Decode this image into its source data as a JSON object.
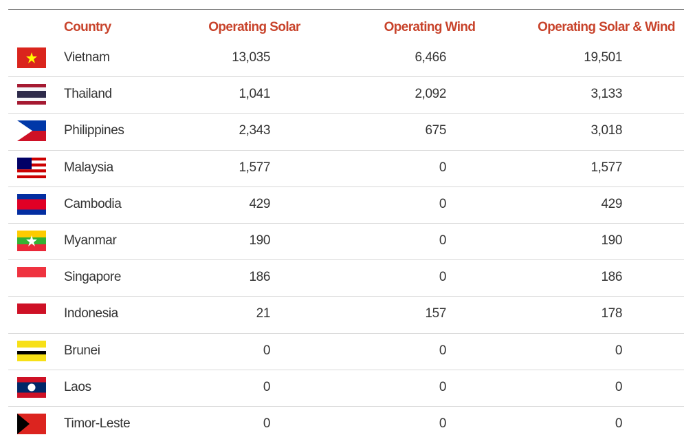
{
  "table": {
    "header": [
      "Country",
      "Operating Solar",
      "Operating Wind",
      "Operating Solar & Wind"
    ],
    "rows": [
      [
        "Vietnam",
        "13,035",
        "6,466",
        "19,501"
      ],
      [
        "Thailand",
        "1,041",
        "2,092",
        "3,133"
      ],
      [
        "Philippines",
        "2,343",
        "675",
        "3,018"
      ],
      [
        "Malaysia",
        "1,577",
        "0",
        "1,577"
      ],
      [
        "Cambodia",
        "429",
        "0",
        "429"
      ],
      [
        "Myanmar",
        "190",
        "0",
        "190"
      ],
      [
        "Singapore",
        "186",
        "0",
        "186"
      ],
      [
        "Indonesia",
        "21",
        "157",
        "178"
      ],
      [
        "Brunei",
        "0",
        "0",
        "0"
      ],
      [
        "Laos",
        "0",
        "0",
        "0"
      ],
      [
        "Timor-Leste",
        "0",
        "0",
        "0"
      ]
    ]
  }
}
